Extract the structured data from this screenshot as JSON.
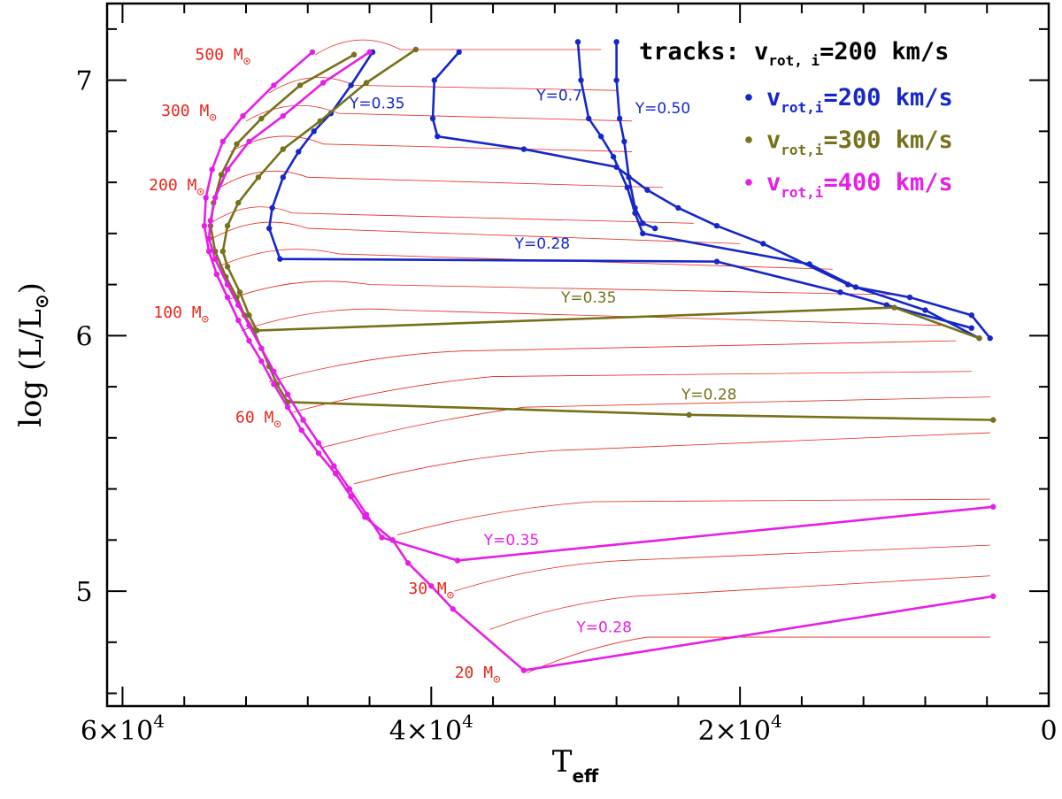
{
  "chart_data": {
    "type": "line",
    "xlabel": "T",
    "xlabel_sub": "eff",
    "ylabel": "log (L/L",
    "ylabel_sun": "⊙",
    "ylabel_close": ")",
    "xlim": [
      61000,
      0
    ],
    "ylim": [
      4.55,
      7.3
    ],
    "x_ticks": [
      {
        "value": 60000,
        "label": "6×10",
        "exp": "4"
      },
      {
        "value": 40000,
        "label": "4×10",
        "exp": "4"
      },
      {
        "value": 20000,
        "label": "2×10",
        "exp": "4"
      },
      {
        "value": 0,
        "label": "0",
        "exp": ""
      }
    ],
    "x_minor_step": 4000,
    "y_ticks": [
      {
        "value": 5,
        "label": "5"
      },
      {
        "value": 6,
        "label": "6"
      },
      {
        "value": 7,
        "label": "7"
      }
    ],
    "y_minor_step": 0.2,
    "colors": {
      "tracks": "#e8251b",
      "v200": "#1527c9",
      "v300": "#76711a",
      "v400": "#e61ee6"
    },
    "legend": {
      "title": {
        "prefix": "tracks: v",
        "sub": "rot, i",
        "suffix": "=200 km/s"
      },
      "entries": [
        {
          "symbol": "•",
          "prefix": "v",
          "sub": "rot,i",
          "suffix": "=200 km/s",
          "color": "#1527c9"
        },
        {
          "symbol": "•",
          "prefix": "v",
          "sub": "rot,i",
          "suffix": "=300 km/s",
          "color": "#76711a"
        },
        {
          "symbol": "•",
          "prefix": "v",
          "sub": "rot,i",
          "suffix": "=400 km/s",
          "color": "#e61ee6"
        }
      ]
    },
    "mass_labels": [
      {
        "text": "500 M",
        "sun": "⊙",
        "x": 53500,
        "y": 7.08
      },
      {
        "text": "300 M",
        "sun": "⊙",
        "x": 55700,
        "y": 6.86
      },
      {
        "text": "200 M",
        "sun": "⊙",
        "x": 56500,
        "y": 6.57
      },
      {
        "text": "100 M",
        "sun": "⊙",
        "x": 56200,
        "y": 6.07
      },
      {
        "text": "60 M",
        "sun": "⊙",
        "x": 51200,
        "y": 5.66
      },
      {
        "text": "30 M",
        "sun": "⊙",
        "x": 40000,
        "y": 4.99
      },
      {
        "text": "20 M",
        "sun": "⊙",
        "x": 37000,
        "y": 4.66
      }
    ],
    "tracks": [
      {
        "mass": 20,
        "zams": [
          33800,
          4.68
        ],
        "tams": [
          26000,
          4.82
        ],
        "end": [
          3800,
          4.82
        ]
      },
      {
        "mass": 25,
        "zams": [
          36200,
          4.85
        ],
        "tams": [
          26800,
          4.98
        ],
        "end": [
          3800,
          5.06
        ]
      },
      {
        "mass": 30,
        "zams": [
          38500,
          5.0
        ],
        "tams": [
          27500,
          5.12
        ],
        "end": [
          3800,
          5.18
        ]
      },
      {
        "mass": 40,
        "zams": [
          42200,
          5.22
        ],
        "tams": [
          29500,
          5.35
        ],
        "end": [
          3800,
          5.36
        ]
      },
      {
        "mass": 50,
        "zams": [
          45000,
          5.42
        ],
        "tams": [
          32000,
          5.55
        ],
        "end": [
          3800,
          5.62
        ]
      },
      {
        "mass": 60,
        "zams": [
          47200,
          5.56
        ],
        "tams": [
          34000,
          5.72
        ],
        "end": [
          3800,
          5.76
        ]
      },
      {
        "mass": 70,
        "zams": [
          49000,
          5.7
        ],
        "tams": [
          36000,
          5.84
        ],
        "end": [
          5000,
          5.86
        ]
      },
      {
        "mass": 80,
        "zams": [
          50500,
          5.82
        ],
        "tams": [
          38000,
          5.94
        ],
        "end": [
          6000,
          5.98
        ]
      },
      {
        "mass": 100,
        "zams": [
          52300,
          6.02
        ],
        "tams": [
          42000,
          6.1
        ],
        "end": [
          7000,
          6.04
        ]
      },
      {
        "mass": 120,
        "zams": [
          53200,
          6.14
        ],
        "tams": [
          44000,
          6.2
        ],
        "end": [
          10000,
          6.16
        ]
      },
      {
        "mass": 150,
        "zams": [
          53800,
          6.27
        ],
        "tams": [
          46000,
          6.32
        ],
        "end": [
          14000,
          6.26
        ]
      },
      {
        "mass": 180,
        "zams": [
          54200,
          6.38
        ],
        "tams": [
          48000,
          6.42
        ],
        "end": [
          20000,
          6.36
        ]
      },
      {
        "mass": 200,
        "zams": [
          54300,
          6.44
        ],
        "tams": [
          49000,
          6.48
        ],
        "end": [
          23000,
          6.44
        ]
      },
      {
        "mass": 250,
        "zams": [
          53700,
          6.58
        ],
        "tams": [
          48000,
          6.62
        ],
        "end": [
          25000,
          6.58
        ]
      },
      {
        "mass": 300,
        "zams": [
          53000,
          6.72
        ],
        "tams": [
          47000,
          6.75
        ],
        "end": [
          27000,
          6.72
        ]
      },
      {
        "mass": 350,
        "zams": [
          52000,
          6.84
        ],
        "tams": [
          46000,
          6.87
        ],
        "end": [
          27000,
          6.84
        ]
      },
      {
        "mass": 400,
        "zams": [
          50500,
          6.95
        ],
        "tams": [
          45000,
          6.98
        ],
        "end": [
          28000,
          6.96
        ]
      },
      {
        "mass": 500,
        "zams": [
          47500,
          7.1
        ],
        "tams": [
          42000,
          7.12
        ],
        "end": [
          29000,
          7.12
        ]
      }
    ],
    "series": [
      {
        "name": "v_rot,i=200 km/s, Y=0.35",
        "color": "#1527c9",
        "points": [
          [
            38200,
            7.11
          ],
          [
            39800,
            7.0
          ],
          [
            39900,
            6.85
          ],
          [
            39600,
            6.78
          ],
          [
            34000,
            6.73
          ],
          [
            28000,
            6.66
          ],
          [
            26000,
            6.57
          ],
          [
            24000,
            6.5
          ],
          [
            21500,
            6.43
          ],
          [
            18500,
            6.36
          ],
          [
            13000,
            6.2
          ],
          [
            8000,
            6.1
          ],
          [
            4500,
            5.99
          ]
        ]
      },
      {
        "name": "v_rot,i=200 km/s, Y=0.50",
        "color": "#1527c9",
        "points": [
          [
            28000,
            7.15
          ],
          [
            28000,
            7.0
          ],
          [
            27800,
            6.85
          ],
          [
            27500,
            6.76
          ],
          [
            27200,
            6.62
          ],
          [
            26800,
            6.5
          ],
          [
            26300,
            6.44
          ],
          [
            25500,
            6.42
          ]
        ]
      },
      {
        "name": "v_rot,i=200 km/s, Y=0.7",
        "color": "#1527c9",
        "points": [
          [
            30500,
            7.15
          ],
          [
            30300,
            7.0
          ],
          [
            29800,
            6.85
          ],
          [
            29000,
            6.78
          ],
          [
            28200,
            6.7
          ],
          [
            27300,
            6.58
          ],
          [
            26800,
            6.48
          ],
          [
            26300,
            6.4
          ],
          [
            15500,
            6.28
          ],
          [
            12500,
            6.19
          ],
          [
            9000,
            6.15
          ],
          [
            5000,
            6.08
          ],
          [
            3800,
            5.99
          ]
        ]
      },
      {
        "name": "v_rot,i=200 km/s, Y=0.28",
        "color": "#1527c9",
        "points": [
          [
            43800,
            7.11
          ],
          [
            45200,
            6.98
          ],
          [
            46500,
            6.87
          ],
          [
            47600,
            6.8
          ],
          [
            48600,
            6.72
          ],
          [
            49600,
            6.62
          ],
          [
            50300,
            6.5
          ],
          [
            50500,
            6.42
          ],
          [
            49800,
            6.3
          ],
          [
            21500,
            6.29
          ],
          [
            13500,
            6.17
          ],
          [
            10500,
            6.12
          ],
          [
            5000,
            6.03
          ]
        ]
      },
      {
        "name": "v_rot,i=300 km/s, Y=0.28 (upper)",
        "color": "#76711a",
        "points": [
          [
            41000,
            7.12
          ],
          [
            44200,
            6.99
          ],
          [
            47200,
            6.84
          ],
          [
            49600,
            6.73
          ],
          [
            51200,
            6.62
          ],
          [
            52500,
            6.52
          ],
          [
            53200,
            6.43
          ],
          [
            53500,
            6.33
          ],
          [
            53200,
            6.27
          ],
          [
            52400,
            6.17
          ],
          [
            51800,
            6.08
          ],
          [
            51300,
            6.02
          ],
          [
            10000,
            6.11
          ],
          [
            4500,
            5.99
          ]
        ]
      },
      {
        "name": "v_rot,i=300 km/s, lower",
        "color": "#76711a",
        "points": [
          [
            45000,
            7.1
          ],
          [
            48500,
            6.98
          ],
          [
            51000,
            6.85
          ],
          [
            52600,
            6.75
          ],
          [
            53600,
            6.63
          ],
          [
            54100,
            6.52
          ],
          [
            54300,
            6.43
          ],
          [
            54000,
            6.33
          ],
          [
            53300,
            6.23
          ],
          [
            52600,
            6.15
          ],
          [
            52100,
            6.08
          ],
          [
            51500,
            6.02
          ],
          [
            51000,
            5.95
          ],
          [
            50500,
            5.88
          ],
          [
            50000,
            5.81
          ],
          [
            49300,
            5.74
          ],
          [
            23300,
            5.69
          ],
          [
            3600,
            5.67
          ]
        ]
      },
      {
        "name": "v_rot,i=400 km/s (upper)",
        "color": "#e61ee6",
        "points": [
          [
            44000,
            7.11
          ],
          [
            47000,
            6.99
          ],
          [
            49600,
            6.86
          ],
          [
            51800,
            6.76
          ],
          [
            53200,
            6.65
          ],
          [
            54000,
            6.54
          ],
          [
            54300,
            6.45
          ],
          [
            54400,
            6.38
          ],
          [
            54000,
            6.3
          ],
          [
            53200,
            6.2
          ],
          [
            52500,
            6.12
          ],
          [
            51800,
            6.04
          ],
          [
            51000,
            5.95
          ],
          [
            50200,
            5.86
          ],
          [
            49300,
            5.77
          ],
          [
            48300,
            5.67
          ],
          [
            47300,
            5.58
          ],
          [
            46300,
            5.49
          ],
          [
            45300,
            5.4
          ],
          [
            44200,
            5.3
          ],
          [
            43200,
            5.21
          ],
          [
            38300,
            5.12
          ],
          [
            3600,
            5.33
          ]
        ]
      },
      {
        "name": "v_rot,i=400 km/s (lower)",
        "color": "#e61ee6",
        "points": [
          [
            47700,
            7.11
          ],
          [
            50200,
            6.98
          ],
          [
            52200,
            6.86
          ],
          [
            53500,
            6.76
          ],
          [
            54200,
            6.65
          ],
          [
            54600,
            6.54
          ],
          [
            54700,
            6.43
          ],
          [
            54400,
            6.33
          ],
          [
            53900,
            6.24
          ],
          [
            53200,
            6.15
          ],
          [
            52500,
            6.06
          ],
          [
            51800,
            5.98
          ],
          [
            51000,
            5.9
          ],
          [
            50200,
            5.81
          ],
          [
            49300,
            5.72
          ],
          [
            48400,
            5.63
          ],
          [
            47300,
            5.54
          ],
          [
            46200,
            5.46
          ],
          [
            45200,
            5.37
          ],
          [
            44300,
            5.29
          ],
          [
            42500,
            5.2
          ],
          [
            41500,
            5.11
          ],
          [
            40000,
            5.02
          ],
          [
            38600,
            4.93
          ],
          [
            34000,
            4.69
          ],
          [
            3600,
            4.98
          ]
        ]
      }
    ],
    "iso_labels": [
      {
        "text": "Y=0.35",
        "x": 43500,
        "y": 6.89,
        "color": "#1527c9"
      },
      {
        "text": "Y=0.7",
        "x": 31700,
        "y": 6.92,
        "color": "#1527c9"
      },
      {
        "text": "Y=0.50",
        "x": 25000,
        "y": 6.87,
        "color": "#1527c9"
      },
      {
        "text": "Y=0.28",
        "x": 32800,
        "y": 6.34,
        "color": "#1527c9"
      },
      {
        "text": "Y=0.35",
        "x": 29800,
        "y": 6.13,
        "color": "#76711a"
      },
      {
        "text": "Y=0.28",
        "x": 22000,
        "y": 5.75,
        "color": "#76711a"
      },
      {
        "text": "Y=0.35",
        "x": 34800,
        "y": 5.18,
        "color": "#e61ee6"
      },
      {
        "text": "Y=0.28",
        "x": 28800,
        "y": 4.84,
        "color": "#e61ee6"
      }
    ]
  }
}
